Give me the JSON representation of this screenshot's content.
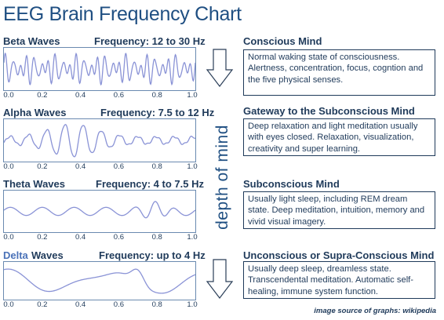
{
  "title": "EEG Brain Frequency Chart",
  "depth_label": "depth of mind",
  "credit": "image source of graphs: wikipedia",
  "tick_labels": [
    "0.0",
    "0.2",
    "0.4",
    "0.6",
    "0.8",
    "1.0"
  ],
  "colors": {
    "wave": "#8a93d6",
    "text": "#1f3a5a",
    "title": "#1f4f82",
    "border": "#1f3a5a"
  },
  "bands": [
    {
      "name": "Beta Waves",
      "frequency": "Frequency: 12 to 30 Hz",
      "mind_heading": "Conscious Mind",
      "description": "Normal waking state of consciousness. Alertness, concentration, focus, cogntion and the five physical senses.",
      "icon": "down-arrow-icon"
    },
    {
      "name": "Alpha Waves",
      "frequency": "Frequency: 7.5 to 12 Hz",
      "mind_heading": "Gateway to the Subconscious Mind",
      "description": "Deep relaxation and light meditation usually with eyes closed. Relaxation, visualization, creativity and super learning."
    },
    {
      "name": "Theta Waves",
      "frequency": "Frequency: 4 to 7.5 Hz",
      "mind_heading": "Subconscious Mind",
      "description": "Usually light sleep, including REM dream state. Deep meditation, intuition, memory and vivid visual imagery."
    },
    {
      "name_prefix": "Delta",
      "name_suffix": "Waves",
      "frequency": "Frequency: up to 4 Hz",
      "mind_heading": "Unconscious or Supra-Conscious Mind",
      "description": "Usually deep sleep, dreamless state. Transcendental meditation. Automatic self-healing, immune system function.",
      "icon": "down-arrow-icon"
    }
  ]
}
